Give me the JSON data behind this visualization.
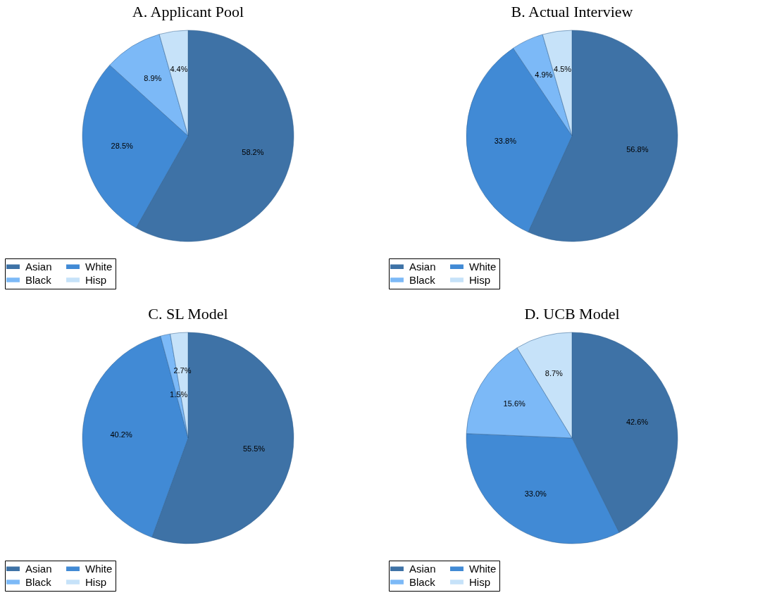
{
  "chart_data": [
    {
      "type": "pie",
      "title": "A. Applicant Pool",
      "categories": [
        "Asian",
        "White",
        "Black",
        "Hisp"
      ],
      "values": [
        58.2,
        28.5,
        8.9,
        4.4
      ],
      "value_labels": [
        "58.2%",
        "28.5%",
        "8.9%",
        "4.4%"
      ],
      "colors": [
        "#3e72a6",
        "#418ad5",
        "#7cb9f7",
        "#c6e2f9"
      ],
      "legend": "bottom"
    },
    {
      "type": "pie",
      "title": "B. Actual Interview",
      "categories": [
        "Asian",
        "White",
        "Black",
        "Hisp"
      ],
      "values": [
        56.8,
        33.8,
        4.9,
        4.5
      ],
      "value_labels": [
        "56.8%",
        "33.8%",
        "4.9%",
        "4.5%"
      ],
      "colors": [
        "#3e72a6",
        "#418ad5",
        "#7cb9f7",
        "#c6e2f9"
      ],
      "legend": "bottom"
    },
    {
      "type": "pie",
      "title": "C. SL Model",
      "categories": [
        "Asian",
        "White",
        "Black",
        "Hisp"
      ],
      "values": [
        55.5,
        40.2,
        1.5,
        2.7
      ],
      "value_labels": [
        "55.5%",
        "40.2%",
        "1.5%",
        "2.7%"
      ],
      "colors": [
        "#3e72a6",
        "#418ad5",
        "#7cb9f7",
        "#c6e2f9"
      ],
      "legend": "bottom"
    },
    {
      "type": "pie",
      "title": "D. UCB Model",
      "categories": [
        "Asian",
        "White",
        "Black",
        "Hisp"
      ],
      "values": [
        42.6,
        33.0,
        15.6,
        8.7
      ],
      "value_labels": [
        "42.6%",
        "33.0%",
        "15.6%",
        "8.7%"
      ],
      "colors": [
        "#3e72a6",
        "#418ad5",
        "#7cb9f7",
        "#c6e2f9"
      ],
      "legend": "bottom"
    }
  ]
}
